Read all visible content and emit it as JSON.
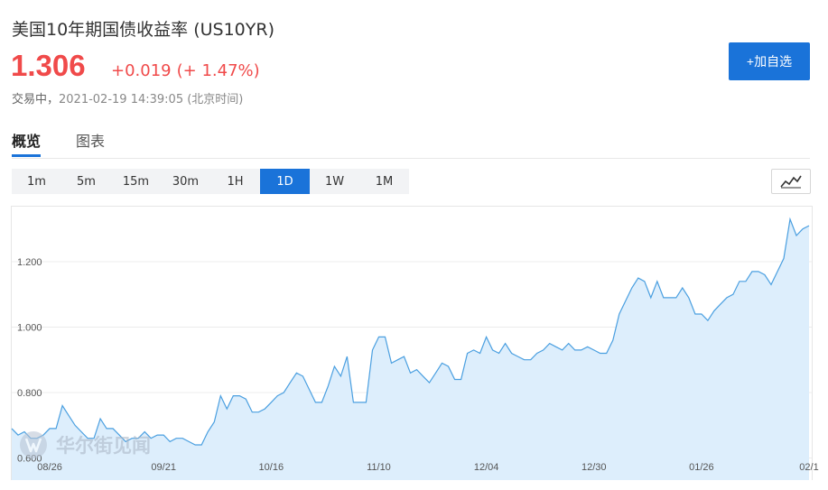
{
  "header": {
    "title": "美国10年期国债收益率 (US10YR)",
    "price": "1.306",
    "change": "+0.019",
    "change_pct": "(+ 1.47%)",
    "status": "交易中，",
    "timestamp": "2021-02-19 14:39:05 (北京时间)"
  },
  "watch_button": {
    "label": "+加自选"
  },
  "tabs": [
    {
      "label": "概览",
      "active": true
    },
    {
      "label": "图表",
      "active": false
    }
  ],
  "periods": [
    {
      "label": "1m"
    },
    {
      "label": "5m"
    },
    {
      "label": "15m"
    },
    {
      "label": "30m"
    },
    {
      "label": "1H"
    },
    {
      "label": "1D",
      "active": true
    },
    {
      "label": "1W"
    },
    {
      "label": "1M"
    }
  ],
  "chart_type_icon": "line-chart-icon",
  "watermark": {
    "text": "华尔街见闻"
  },
  "colors": {
    "up": "#f04a4a",
    "accent": "#1a73d9",
    "line": "#4a9fe0",
    "fill": "#ddeefc"
  },
  "chart_data": {
    "type": "area",
    "y_ticks": [
      "1.200",
      "1.000",
      "0.800",
      "0.600"
    ],
    "y_tick_values": [
      1.2,
      1.0,
      0.8,
      0.6
    ],
    "ylim": [
      0.58,
      1.35
    ],
    "x_ticks": [
      "08/26",
      "09/21",
      "10/16",
      "11/10",
      "12/04",
      "12/30",
      "01/26",
      "02/1"
    ],
    "x_tick_index": [
      6,
      24,
      41,
      58,
      75,
      92,
      109,
      126
    ],
    "grid": true,
    "values": [
      0.69,
      0.67,
      0.68,
      0.66,
      0.66,
      0.67,
      0.69,
      0.69,
      0.76,
      0.73,
      0.7,
      0.68,
      0.66,
      0.66,
      0.72,
      0.69,
      0.69,
      0.67,
      0.65,
      0.66,
      0.66,
      0.68,
      0.66,
      0.67,
      0.67,
      0.65,
      0.66,
      0.66,
      0.65,
      0.64,
      0.64,
      0.68,
      0.71,
      0.79,
      0.75,
      0.79,
      0.79,
      0.78,
      0.74,
      0.74,
      0.75,
      0.77,
      0.79,
      0.8,
      0.83,
      0.86,
      0.85,
      0.81,
      0.77,
      0.77,
      0.82,
      0.88,
      0.85,
      0.91,
      0.77,
      0.77,
      0.77,
      0.93,
      0.97,
      0.97,
      0.89,
      0.9,
      0.91,
      0.86,
      0.87,
      0.85,
      0.83,
      0.86,
      0.89,
      0.88,
      0.84,
      0.84,
      0.92,
      0.93,
      0.92,
      0.97,
      0.93,
      0.92,
      0.95,
      0.92,
      0.91,
      0.9,
      0.9,
      0.92,
      0.93,
      0.95,
      0.94,
      0.93,
      0.95,
      0.93,
      0.93,
      0.94,
      0.93,
      0.92,
      0.92,
      0.96,
      1.04,
      1.08,
      1.12,
      1.15,
      1.14,
      1.09,
      1.14,
      1.09,
      1.09,
      1.09,
      1.12,
      1.09,
      1.04,
      1.04,
      1.02,
      1.05,
      1.07,
      1.09,
      1.1,
      1.14,
      1.14,
      1.17,
      1.17,
      1.16,
      1.13,
      1.17,
      1.21,
      1.33,
      1.28,
      1.3,
      1.31
    ]
  }
}
